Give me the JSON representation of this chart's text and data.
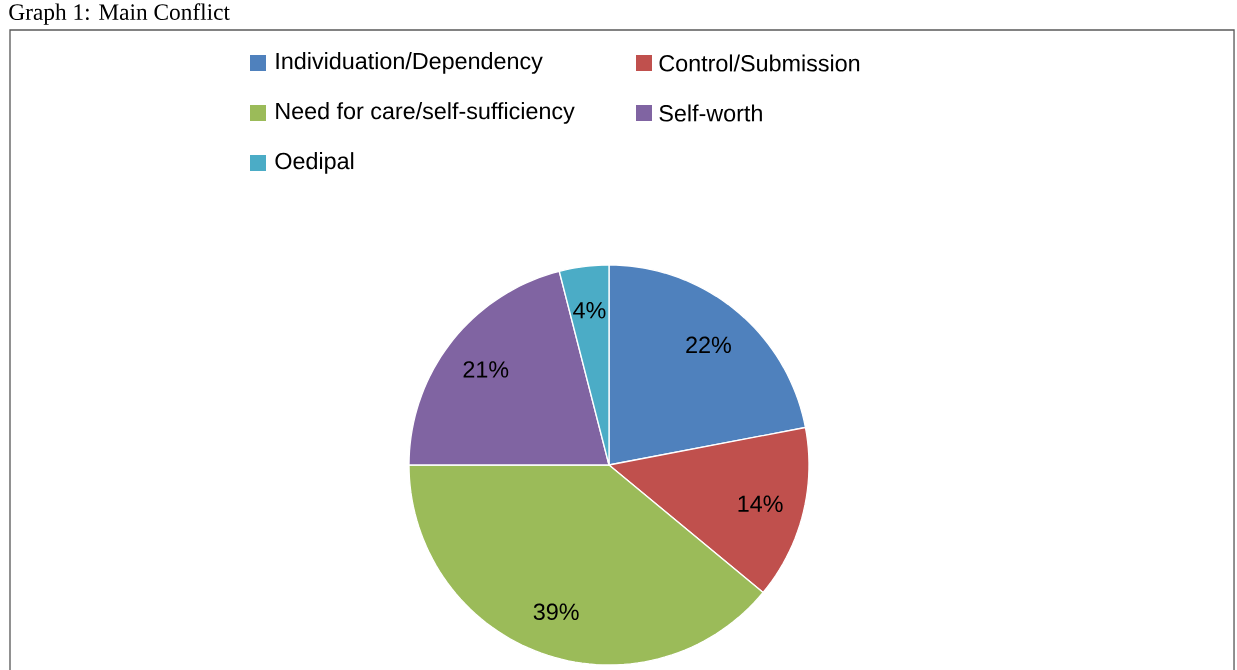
{
  "chart_data": {
    "type": "pie",
    "title": "Graph 1: Main Conflict",
    "categories": [
      "Individuation/Dependency",
      "Control/Submission",
      "Need for care/self-sufficiency",
      "Self-worth",
      "Oedipal"
    ],
    "values": [
      22,
      14,
      39,
      21,
      4
    ],
    "value_labels": [
      "22%",
      "14%",
      "39%",
      "21%",
      "4%"
    ],
    "colors": [
      "#4f81bd",
      "#c0504d",
      "#9bbb59",
      "#8064a2",
      "#4bacc6"
    ],
    "legend": "top"
  }
}
